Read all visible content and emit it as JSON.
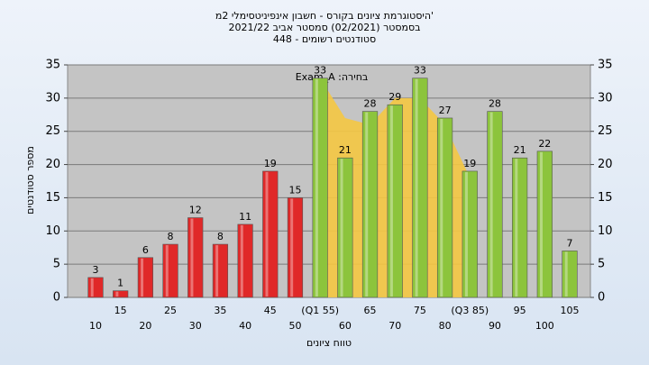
{
  "chart_data": {
    "type": "bar",
    "title": "'היסטוגרמת ציונים בקורס - חשבון אינפיניטסימלי 2מ",
    "subtitle": "בסמסטר  (02/2021)  סמסטר אביב 2021/22",
    "subtitle2": "סטודנטים רשומים - 448",
    "annotation": "Exam_A :בחירה",
    "ylabel": "מספר סטודנטים",
    "xlabel": "טווח ציונים",
    "categories": [
      "10",
      "15",
      "20",
      "25",
      "30",
      "35",
      "40",
      "45",
      "50",
      "(Q1 55)",
      "60",
      "65",
      "70",
      "75",
      "80",
      "(Q3 85)",
      "90",
      "95",
      "100",
      "105"
    ],
    "series": [
      {
        "values": [
          3,
          1,
          6,
          8,
          12,
          8,
          11,
          19,
          15,
          33,
          21,
          28,
          29,
          33,
          27,
          19,
          28,
          21,
          22,
          7
        ],
        "colors": [
          "#e02828",
          "#e02828",
          "#e02828",
          "#e02828",
          "#e02828",
          "#e02828",
          "#e02828",
          "#e02828",
          "#e02828",
          "#8cc43c",
          "#8cc43c",
          "#8cc43c",
          "#8cc43c",
          "#8cc43c",
          "#8cc43c",
          "#8cc43c",
          "#8cc43c",
          "#8cc43c",
          "#8cc43c",
          "#8cc43c"
        ]
      },
      {
        "values": [
          null,
          null,
          null,
          null,
          null,
          null,
          null,
          null,
          null,
          33,
          27,
          26,
          30,
          30,
          26,
          18,
          null,
          null,
          null,
          null
        ],
        "color": "#f5c842"
      }
    ],
    "ylim": [
      0,
      35
    ],
    "yticks": [
      0,
      5,
      10,
      15,
      20,
      25,
      30,
      35
    ],
    "y2lim": [
      0,
      35
    ],
    "y2ticks": [
      0,
      5,
      10,
      15,
      20,
      25,
      30,
      35
    ],
    "grid": true
  }
}
